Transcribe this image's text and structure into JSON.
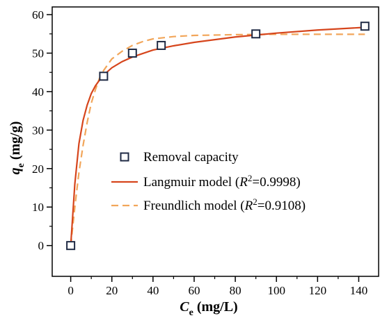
{
  "chart_data": {
    "type": "scatter",
    "xlabel": {
      "main": "C",
      "sub": "e",
      "unit": " (mg/L)"
    },
    "ylabel": {
      "main": "q",
      "sub": "e",
      "unit": " (mg/g)"
    },
    "xlim": [
      -9,
      150
    ],
    "ylim": [
      -8,
      62
    ],
    "x_ticks": [
      0,
      20,
      40,
      60,
      80,
      100,
      120,
      140
    ],
    "y_ticks": [
      0,
      10,
      20,
      30,
      40,
      50,
      60
    ],
    "grid": false,
    "legend_position": "center-right",
    "series": [
      {
        "name": "Removal capacity",
        "kind": "marker",
        "marker": "square-open",
        "color": "#1f2a44",
        "x": [
          0,
          16,
          30,
          44,
          90,
          143
        ],
        "y": [
          0,
          44,
          50,
          52,
          55,
          57
        ]
      },
      {
        "name_prefix": "Langmuir model (",
        "name_r": "R",
        "name_sup": "2",
        "name_suffix": "=0.9998)",
        "kind": "line",
        "style": "solid",
        "color": "#d6451c",
        "x": [
          0,
          2,
          4,
          6,
          8,
          10,
          12,
          14,
          16,
          20,
          25,
          30,
          40,
          50,
          60,
          80,
          100,
          120,
          143
        ],
        "y": [
          0,
          16,
          26.5,
          32.5,
          36.5,
          39.5,
          41.5,
          43,
          44.3,
          46.2,
          47.8,
          49,
          50.8,
          51.9,
          52.8,
          54.2,
          55.2,
          56,
          56.7
        ]
      },
      {
        "name_prefix": "Freundlich model (",
        "name_r": "R",
        "name_sup": "2",
        "name_suffix": "=0.9108)",
        "kind": "line",
        "style": "dashed",
        "color": "#f2a65a",
        "x": [
          0,
          2,
          4,
          6,
          8,
          10,
          12,
          14,
          16,
          18,
          20,
          25,
          30,
          35,
          40,
          50,
          60,
          80,
          100,
          120,
          143
        ],
        "y": [
          0,
          10,
          19,
          26,
          32,
          37,
          40.5,
          43.5,
          45.5,
          47,
          48.5,
          50.5,
          52,
          53,
          53.7,
          54.3,
          54.6,
          54.8,
          54.9,
          54.9,
          54.9
        ]
      }
    ]
  }
}
